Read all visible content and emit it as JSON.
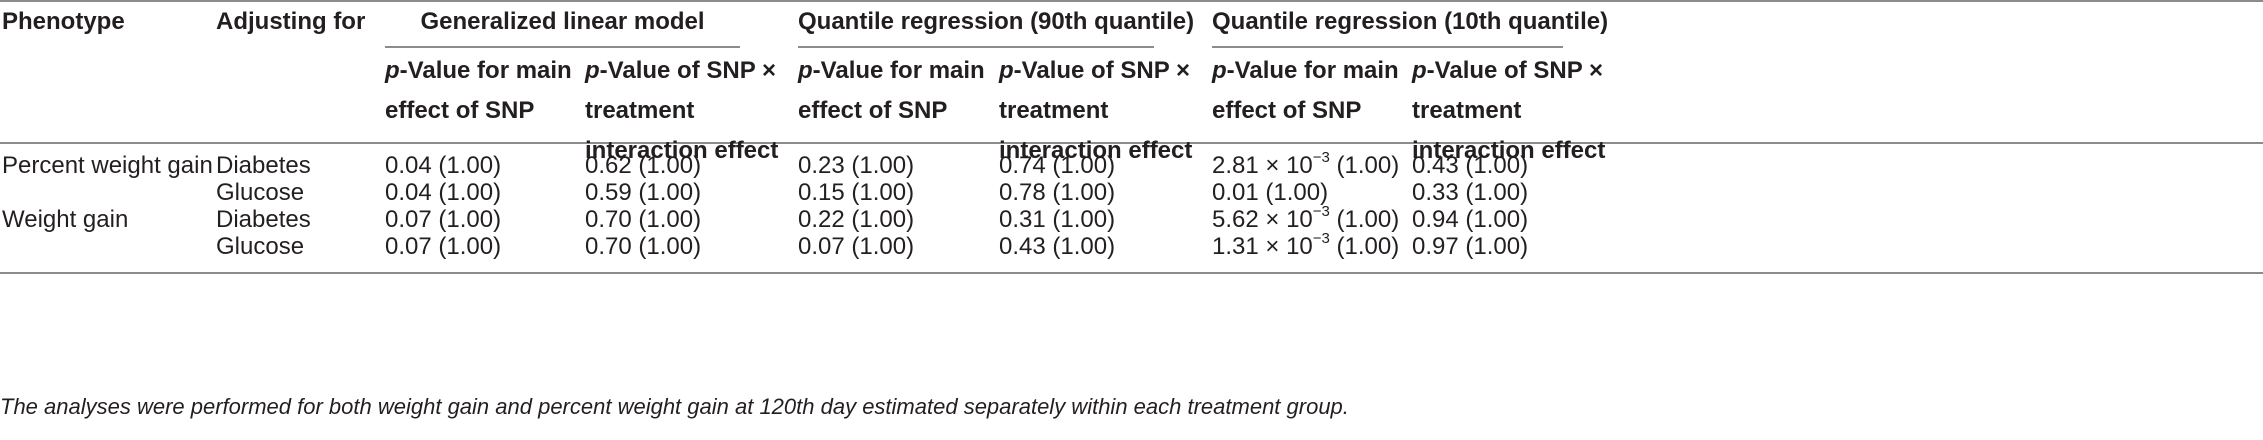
{
  "table": {
    "headers": {
      "phenotype": "Phenotype",
      "adjusting_for": "Adjusting for",
      "groups": [
        "Generalized linear model",
        "Quantile regression (90th quantile)",
        "Quantile regression (10th quantile)"
      ],
      "sub_main": {
        "p": "p",
        "line1_rest": "-Value for main",
        "line2": "effect of SNP"
      },
      "sub_inter": {
        "p": "p",
        "line1_rest": "-Value of SNP ×",
        "line2": "treatment",
        "line3": "interaction effect"
      }
    },
    "rows": [
      {
        "phenotype": "Percent weight gain",
        "adjust": "Diabetes",
        "cells": [
          {
            "text": "0.04 (1.00)"
          },
          {
            "text": "0.62 (1.00)"
          },
          {
            "text": "0.23 (1.00)"
          },
          {
            "text": "0.74 (1.00)"
          },
          {
            "pre": "2.81 × 10",
            "sup": "−3",
            "post": " (1.00)"
          },
          {
            "text": "0.43 (1.00)"
          }
        ]
      },
      {
        "phenotype": "",
        "adjust": "Glucose",
        "cells": [
          {
            "text": "0.04 (1.00)"
          },
          {
            "text": "0.59 (1.00)"
          },
          {
            "text": "0.15 (1.00)"
          },
          {
            "text": "0.78 (1.00)"
          },
          {
            "text": "0.01 (1.00)"
          },
          {
            "text": "0.33 (1.00)"
          }
        ]
      },
      {
        "phenotype": "Weight gain",
        "adjust": "Diabetes",
        "cells": [
          {
            "text": "0.07 (1.00)"
          },
          {
            "text": "0.70 (1.00)"
          },
          {
            "text": "0.22 (1.00)"
          },
          {
            "text": "0.31 (1.00)"
          },
          {
            "pre": "5.62 × 10",
            "sup": "−3",
            "post": " (1.00)"
          },
          {
            "text": "0.94 (1.00)"
          }
        ]
      },
      {
        "phenotype": "",
        "adjust": "Glucose",
        "cells": [
          {
            "text": "0.07 (1.00)"
          },
          {
            "text": "0.70 (1.00)"
          },
          {
            "text": "0.07 (1.00)"
          },
          {
            "text": "0.43 (1.00)"
          },
          {
            "pre": "1.31 × 10",
            "sup": "−3",
            "post": " (1.00)"
          },
          {
            "text": "0.97 (1.00)"
          }
        ]
      }
    ],
    "footnote": "The analyses were performed for both weight gain and percent weight gain at 120th day estimated separately within each treatment group."
  }
}
